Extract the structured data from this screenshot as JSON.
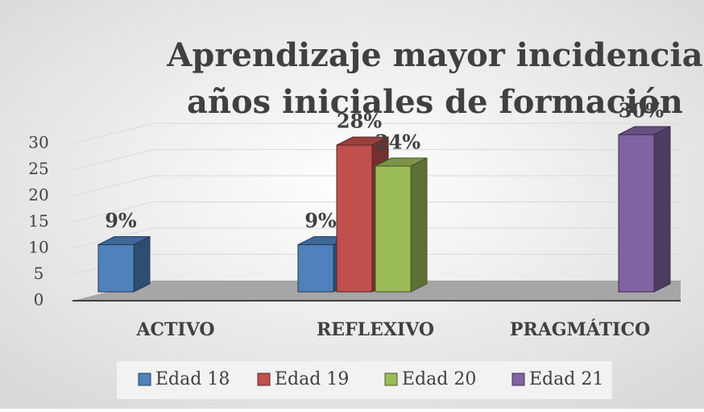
{
  "chart_data": {
    "type": "bar",
    "title": [
      "Aprendizaje mayor incidencia",
      "años iniciales de formación"
    ],
    "categories": [
      "ACTIVO",
      "REFLEXIVO",
      "PRAGMÁTICO"
    ],
    "series": [
      {
        "name": "Edad 18",
        "color": "#4f81bd",
        "values": [
          9,
          9,
          null
        ],
        "value_labels": [
          "9%",
          "9%",
          null
        ]
      },
      {
        "name": "Edad 19",
        "color": "#c0504d",
        "values": [
          null,
          28,
          null
        ],
        "value_labels": [
          null,
          "28%",
          null
        ]
      },
      {
        "name": "Edad 20",
        "color": "#9bbb59",
        "values": [
          null,
          24,
          null
        ],
        "value_labels": [
          null,
          "24%",
          null
        ]
      },
      {
        "name": "Edad 21",
        "color": "#8064a2",
        "values": [
          null,
          null,
          30
        ],
        "value_labels": [
          null,
          null,
          "30%"
        ]
      }
    ],
    "ylim": [
      0,
      30
    ],
    "yticks": [
      0,
      5,
      10,
      15,
      20,
      25,
      30
    ],
    "grid": true,
    "legend": "bottom"
  }
}
